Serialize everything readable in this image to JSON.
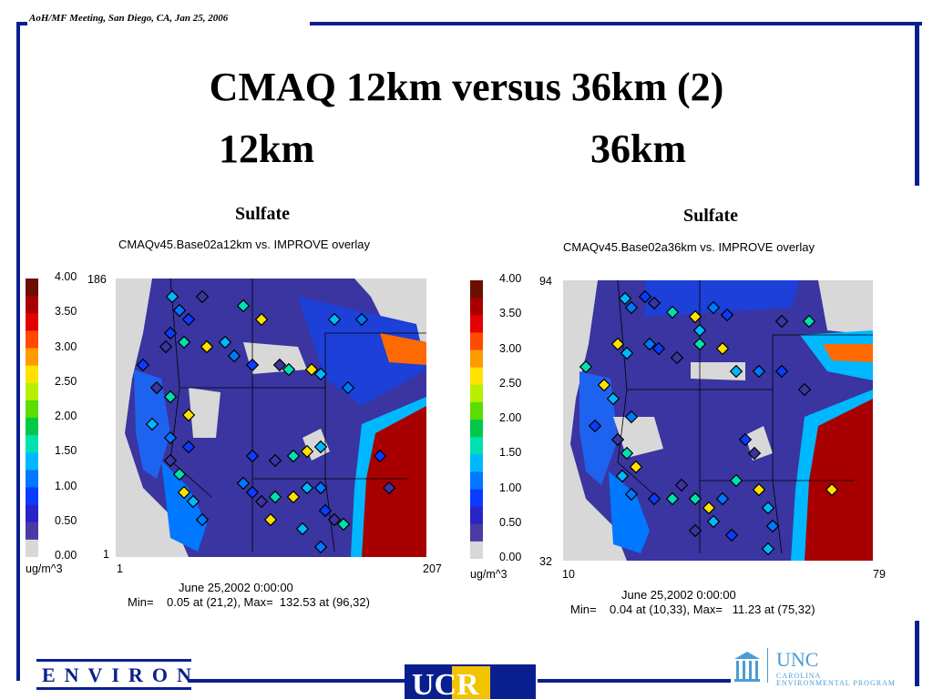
{
  "header": {
    "meeting": "AoH/MF Meeting, San Diego, CA,  Jan 25, 2006"
  },
  "title": {
    "line1": "CMAQ 12km versus 36km (2)",
    "left_label": "12km",
    "right_label": "36km"
  },
  "colors": {
    "frame": "#0a1f8f",
    "sea": "#d8d8d8",
    "field_low": "#3a35a0"
  },
  "colorbar": {
    "unit": "ug/m^3",
    "ticks": [
      "4.00",
      "3.50",
      "3.00",
      "2.50",
      "2.00",
      "1.50",
      "1.00",
      "0.50",
      "0.00"
    ],
    "colors": [
      "#6b0f00",
      "#a80000",
      "#e30000",
      "#ff4a00",
      "#ff9a00",
      "#ffe100",
      "#b6f000",
      "#5cdc00",
      "#00c848",
      "#00e0b0",
      "#00b8ff",
      "#0078ff",
      "#0a3cff",
      "#2a23c8",
      "#4a3aa6",
      "#d8d8d8"
    ]
  },
  "panels": [
    {
      "id": "12km",
      "title": "Sulfate",
      "subtitle": "CMAQv45.Base02a12km vs. IMPROVE overlay",
      "y_top": "186",
      "y_bottom": "1",
      "x_left": "1",
      "x_right": "207",
      "date": "June 25,2002 0:00:00",
      "minmax": "Min=    0.05 at (21,2), Max=  132.53 at (96,32)"
    },
    {
      "id": "36km",
      "title": "Sulfate",
      "subtitle": "CMAQv45.Base02a36km vs. IMPROVE overlay",
      "y_top": "94",
      "y_bottom": "32",
      "x_left": "10",
      "x_right": "79",
      "date": "June 25,2002 0:00:00",
      "minmax": "Min=    0.04 at (10,33), Max=   11.23 at (75,32)"
    }
  ],
  "logos": {
    "environ": "ENVIRON",
    "ucr": "UCR",
    "unc_main": "UNC",
    "unc_sub1": "CAROLINA",
    "unc_sub2": "ENVIRONMENTAL PROGRAM"
  }
}
